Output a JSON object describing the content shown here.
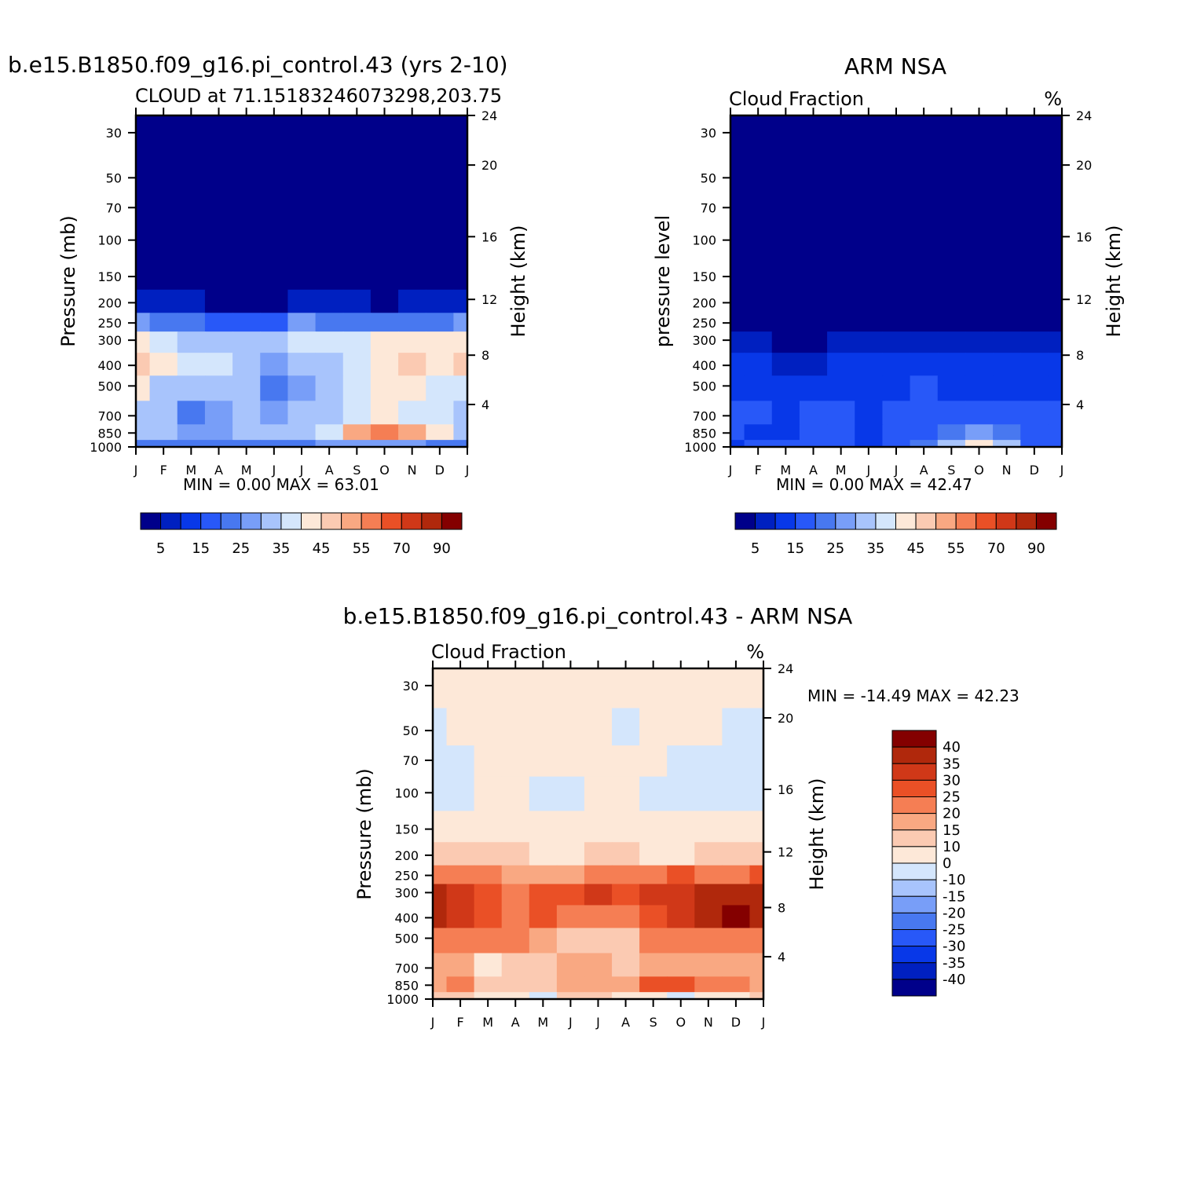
{
  "panels": {
    "model": {
      "main_title": "b.e15.B1850.f09_g16.pi_control.43 (yrs 2-10)",
      "left_label": "CLOUD at 71.15183246073298,203.75",
      "right_label": "",
      "ylabel": "Pressure (mb)",
      "ylabel2": "Height (km)",
      "minmax": "MIN =    0.00 MAX =   63.01",
      "cbar_labels": [
        "5",
        "15",
        "25",
        "35",
        "45",
        "55",
        "70",
        "90"
      ]
    },
    "obs": {
      "main_title": "ARM NSA",
      "left_label": "Cloud Fraction",
      "right_label": "%",
      "ylabel": "pressure level",
      "ylabel2": "Height (km)",
      "minmax": "MIN =    0.00 MAX =   42.47",
      "cbar_labels": [
        "5",
        "15",
        "25",
        "35",
        "45",
        "55",
        "70",
        "90"
      ]
    },
    "diff": {
      "main_title": "b.e15.B1850.f09_g16.pi_control.43 - ARM NSA",
      "left_label": "Cloud Fraction",
      "right_label": "%",
      "ylabel": "Pressure (mb)",
      "ylabel2": "Height (km)",
      "minmax": "MIN = -14.49 MAX =   42.23",
      "cbar_labels": [
        "40",
        "35",
        "30",
        "25",
        "20",
        "15",
        "10",
        "0",
        "-10",
        "-15",
        "-20",
        "-25",
        "-30",
        "-35",
        "-40"
      ]
    }
  },
  "chart_data": [
    {
      "type": "heatmap",
      "title": "b.e15.B1850.f09_g16.pi_control.43 (yrs 2-10)",
      "subtitle": "CLOUD at 71.15183246073298,203.75",
      "xlabel": "",
      "ylabel": "Pressure (mb)",
      "ylabel_right": "Height (km)",
      "x_ticks": [
        "J",
        "F",
        "M",
        "A",
        "M",
        "J",
        "J",
        "A",
        "S",
        "O",
        "N",
        "D",
        "J"
      ],
      "y_ticks": [
        30,
        50,
        70,
        100,
        150,
        200,
        250,
        300,
        400,
        500,
        700,
        850,
        1000
      ],
      "y2_ticks": [
        4,
        8,
        12,
        16,
        20,
        24
      ],
      "min": 0.0,
      "max": 63.01,
      "levels": [
        5,
        10,
        15,
        20,
        25,
        30,
        35,
        40,
        45,
        50,
        55,
        60,
        70,
        80,
        90
      ],
      "colors": [
        "#00008a",
        "#0020c0",
        "#0838e8",
        "#2858f8",
        "#4878f0",
        "#789ef8",
        "#a8c4fc",
        "#d4e6fc",
        "#fde8d8",
        "#fbcab2",
        "#f9a882",
        "#f57e54",
        "#ea5026",
        "#d03818",
        "#b0280c",
        "#840000"
      ],
      "values": [
        [
          0,
          0,
          0,
          0,
          0,
          0,
          0,
          0,
          0,
          0,
          0,
          0,
          0
        ],
        [
          0,
          0,
          0,
          0,
          0,
          0,
          0,
          0,
          0,
          0,
          0,
          0,
          0
        ],
        [
          0,
          0,
          0,
          0,
          0,
          0,
          0,
          0,
          0,
          0,
          0,
          0,
          0
        ],
        [
          0,
          0,
          0,
          0,
          0,
          0,
          0,
          0,
          0,
          0,
          0,
          0,
          0
        ],
        [
          1,
          1,
          1,
          0,
          0,
          1,
          1,
          1,
          1,
          0,
          1,
          1,
          1
        ],
        [
          8,
          5,
          7,
          3,
          3,
          4,
          8,
          7,
          6,
          4,
          6,
          7,
          8
        ],
        [
          25,
          20,
          22,
          16,
          18,
          18,
          28,
          24,
          24,
          22,
          24,
          24,
          26
        ],
        [
          44,
          36,
          34,
          30,
          32,
          30,
          38,
          36,
          38,
          40,
          44,
          42,
          44
        ],
        [
          46,
          40,
          36,
          35,
          34,
          28,
          30,
          30,
          36,
          42,
          48,
          44,
          46
        ],
        [
          40,
          34,
          33,
          34,
          34,
          24,
          26,
          30,
          38,
          40,
          40,
          38,
          38
        ],
        [
          34,
          30,
          24,
          26,
          32,
          28,
          32,
          34,
          38,
          40,
          38,
          36,
          34
        ],
        [
          30,
          30,
          28,
          28,
          30,
          32,
          34,
          38,
          50,
          55,
          50,
          40,
          30
        ],
        [
          24,
          22,
          22,
          24,
          24,
          24,
          24,
          26,
          26,
          28,
          26,
          24,
          24
        ]
      ]
    },
    {
      "type": "heatmap",
      "title": "ARM NSA",
      "subtitle": "Cloud Fraction",
      "units": "%",
      "xlabel": "",
      "ylabel": "pressure level",
      "ylabel_right": "Height (km)",
      "x_ticks": [
        "J",
        "F",
        "M",
        "A",
        "M",
        "J",
        "J",
        "A",
        "S",
        "O",
        "N",
        "D",
        "J"
      ],
      "y_ticks": [
        30,
        50,
        70,
        100,
        150,
        200,
        250,
        300,
        400,
        500,
        700,
        850,
        1000
      ],
      "y2_ticks": [
        4,
        8,
        12,
        16,
        20,
        24
      ],
      "min": 0.0,
      "max": 42.47,
      "levels": [
        5,
        10,
        15,
        20,
        25,
        30,
        35,
        40,
        45,
        50,
        55,
        60,
        70,
        80,
        90
      ],
      "colors": [
        "#00008a",
        "#0020c0",
        "#0838e8",
        "#2858f8",
        "#4878f0",
        "#789ef8",
        "#a8c4fc",
        "#d4e6fc",
        "#fde8d8",
        "#fbcab2",
        "#f9a882",
        "#f57e54",
        "#ea5026",
        "#d03818",
        "#b0280c",
        "#840000"
      ],
      "values": [
        [
          0,
          0,
          0,
          0,
          0,
          0,
          0,
          0,
          0,
          0,
          0,
          0,
          0
        ],
        [
          0,
          0,
          0,
          0,
          0,
          0,
          0,
          0,
          0,
          0,
          0,
          0,
          0
        ],
        [
          0,
          0,
          0,
          0,
          0,
          0,
          0,
          0,
          0,
          0,
          0,
          0,
          0
        ],
        [
          0,
          0,
          0,
          0,
          0,
          0,
          0,
          0,
          0,
          0,
          0,
          0,
          0
        ],
        [
          0,
          0,
          0,
          0,
          0,
          0,
          0,
          0,
          0,
          0,
          0,
          0,
          0
        ],
        [
          0,
          0,
          0,
          0,
          0,
          0,
          0,
          0,
          0,
          0,
          0,
          0,
          0
        ],
        [
          2,
          2,
          1,
          1,
          2,
          3,
          4,
          4,
          3,
          2,
          2,
          3,
          3
        ],
        [
          6,
          6,
          3,
          4,
          6,
          7,
          8,
          7,
          6,
          6,
          6,
          7,
          7
        ],
        [
          11,
          11,
          9,
          9,
          11,
          10,
          11,
          13,
          12,
          12,
          12,
          13,
          11
        ],
        [
          13,
          12,
          13,
          13,
          14,
          11,
          14,
          16,
          14,
          13,
          14,
          14,
          13
        ],
        [
          16,
          16,
          14,
          15,
          17,
          14,
          17,
          18,
          17,
          16,
          16,
          15,
          16
        ],
        [
          17,
          14,
          13,
          15,
          16,
          12,
          16,
          18,
          22,
          26,
          22,
          18,
          16
        ],
        [
          14,
          15,
          16,
          17,
          17,
          14,
          17,
          21,
          30,
          42,
          30,
          17,
          15
        ]
      ]
    },
    {
      "type": "heatmap",
      "title": "b.e15.B1850.f09_g16.pi_control.43 - ARM NSA",
      "subtitle": "Cloud Fraction",
      "units": "%",
      "xlabel": "",
      "ylabel": "Pressure (mb)",
      "ylabel_right": "Height (km)",
      "x_ticks": [
        "J",
        "F",
        "M",
        "A",
        "M",
        "J",
        "J",
        "A",
        "S",
        "O",
        "N",
        "D",
        "J"
      ],
      "y_ticks": [
        30,
        50,
        70,
        100,
        150,
        200,
        250,
        300,
        400,
        500,
        700,
        850,
        1000
      ],
      "y2_ticks": [
        4,
        8,
        12,
        16,
        20,
        24
      ],
      "min": -14.49,
      "max": 42.23,
      "levels": [
        -40,
        -35,
        -30,
        -25,
        -20,
        -15,
        -10,
        0,
        10,
        15,
        20,
        25,
        30,
        35,
        40
      ],
      "colors": [
        "#00008a",
        "#0020c0",
        "#0838e8",
        "#2858f8",
        "#4878f0",
        "#789ef8",
        "#a8c4fc",
        "#d4e6fc",
        "#fde8d8",
        "#fbcab2",
        "#f9a882",
        "#f57e54",
        "#ea5026",
        "#d03818",
        "#b0280c",
        "#840000"
      ],
      "values": [
        [
          2,
          2,
          2,
          2,
          2,
          2,
          2,
          2,
          2,
          2,
          2,
          2,
          2
        ],
        [
          -3,
          2,
          2,
          2,
          2,
          2,
          2,
          -3,
          2,
          2,
          2,
          -3,
          -3
        ],
        [
          -3,
          -3,
          2,
          2,
          2,
          2,
          2,
          2,
          2,
          -3,
          -3,
          -3,
          -3
        ],
        [
          -3,
          -3,
          2,
          2,
          -3,
          -3,
          2,
          2,
          -3,
          -3,
          -3,
          -3,
          -3
        ],
        [
          2,
          2,
          2,
          2,
          2,
          2,
          2,
          2,
          2,
          2,
          2,
          2,
          2
        ],
        [
          13,
          12,
          11,
          10,
          9,
          9,
          11,
          10,
          9,
          9,
          11,
          13,
          14
        ],
        [
          24,
          22,
          22,
          17,
          17,
          18,
          24,
          21,
          24,
          25,
          24,
          24,
          25
        ],
        [
          37,
          30,
          26,
          23,
          25,
          29,
          33,
          26,
          31,
          34,
          36,
          38,
          38
        ],
        [
          39,
          34,
          27,
          24,
          25,
          22,
          22,
          21,
          26,
          31,
          37,
          40,
          36
        ],
        [
          24,
          21,
          20,
          20,
          18,
          14,
          11,
          12,
          21,
          23,
          23,
          21,
          22
        ],
        [
          17,
          15,
          8,
          10,
          13,
          18,
          17,
          12,
          16,
          18,
          17,
          17,
          17
        ],
        [
          17,
          21,
          14,
          10,
          13,
          16,
          17,
          19,
          26,
          26,
          24,
          21,
          18
        ],
        [
          13,
          11,
          8,
          7,
          -5,
          11,
          13,
          7,
          1,
          -5,
          5,
          8,
          13
        ]
      ]
    }
  ]
}
